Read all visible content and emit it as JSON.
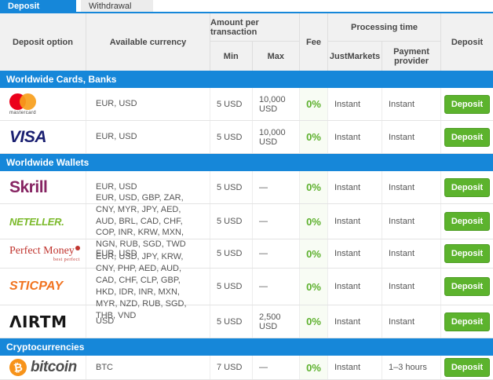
{
  "colors": {
    "accent_blue": "#1687d9",
    "button_green": "#5cb32d",
    "fee_green": "#5cb02c",
    "mastercard_red": "#eb001b",
    "mastercard_orange": "#f79e1b",
    "visa_blue": "#1a1f71",
    "skrill_magenta": "#862462",
    "neteller_green": "#7ab929",
    "perfectmoney_red": "#c0342e",
    "sticpay_orange": "#f1731f",
    "bitcoin_orange": "#f7931a"
  },
  "tabs": {
    "deposit": "Deposit",
    "withdrawal": "Withdrawal"
  },
  "header": {
    "deposit_option": "Deposit option",
    "available_currency": "Available currency",
    "amount_per_transaction": "Amount per transaction",
    "min": "Min",
    "max": "Max",
    "fee": "Fee",
    "processing_time": "Processing time",
    "justmarkets": "JustMarkets",
    "payment_provider": "Payment provider",
    "deposit": "Deposit"
  },
  "logos": {
    "mastercard_word": "mastercard",
    "visa": "VISA",
    "skrill": "Skrill",
    "neteller": "NETELLER.",
    "perfectmoney": "Perfect Money",
    "perfectmoney_tagline": "best perfect",
    "sticpay": "STICPAY",
    "airtm": "ΛIRTM",
    "bitcoin_symbol": "₿",
    "bitcoin_word": "bitcoin"
  },
  "sections": [
    {
      "title": "Worldwide Cards, Banks",
      "rows": [
        {
          "name": "Mastercard",
          "currencies": "EUR, USD",
          "min": "5 USD",
          "max": "10,000 USD",
          "fee": "0%",
          "justmarkets": "Instant",
          "payment_provider": "Instant",
          "button_label": "Deposit"
        },
        {
          "name": "Visa",
          "currencies": "EUR, USD",
          "min": "5 USD",
          "max": "10,000 USD",
          "fee": "0%",
          "justmarkets": "Instant",
          "payment_provider": "Instant",
          "button_label": "Deposit"
        }
      ]
    },
    {
      "title": "Worldwide Wallets",
      "rows": [
        {
          "name": "Skrill",
          "currencies": "EUR, USD",
          "min": "5 USD",
          "max": "—",
          "fee": "0%",
          "justmarkets": "Instant",
          "payment_provider": "Instant",
          "button_label": "Deposit"
        },
        {
          "name": "Neteller",
          "currencies": "EUR, USD, GBP, ZAR, CNY, MYR, JPY, AED, AUD, BRL, CAD, CHF, COP, INR, KRW, MXN, NGN, RUB, SGD, TWD",
          "min": "5 USD",
          "max": "—",
          "fee": "0%",
          "justmarkets": "Instant",
          "payment_provider": "Instant",
          "button_label": "Deposit"
        },
        {
          "name": "Perfect Money",
          "currencies": "EUR, USD",
          "min": "5 USD",
          "max": "—",
          "fee": "0%",
          "justmarkets": "Instant",
          "payment_provider": "Instant",
          "button_label": "Deposit"
        },
        {
          "name": "SticPay",
          "currencies": "EUR, USD, JPY, KRW, CNY, PHP, AED, AUD, CAD, CHF, CLP, GBP, HKD, IDR, INR, MXN, MYR, NZD, RUB, SGD, THB, VND",
          "min": "5 USD",
          "max": "—",
          "fee": "0%",
          "justmarkets": "Instant",
          "payment_provider": "Instant",
          "button_label": "Deposit"
        },
        {
          "name": "Airtm",
          "currencies": "USD",
          "min": "5 USD",
          "max": "2,500 USD",
          "fee": "0%",
          "justmarkets": "Instant",
          "payment_provider": "Instant",
          "button_label": "Deposit"
        }
      ]
    },
    {
      "title": "Cryptocurrencies",
      "rows": [
        {
          "name": "Bitcoin",
          "currencies": "BTC",
          "min": "7 USD",
          "max": "—",
          "fee": "0%",
          "justmarkets": "Instant",
          "payment_provider": "1–3 hours",
          "button_label": "Deposit"
        }
      ]
    }
  ]
}
